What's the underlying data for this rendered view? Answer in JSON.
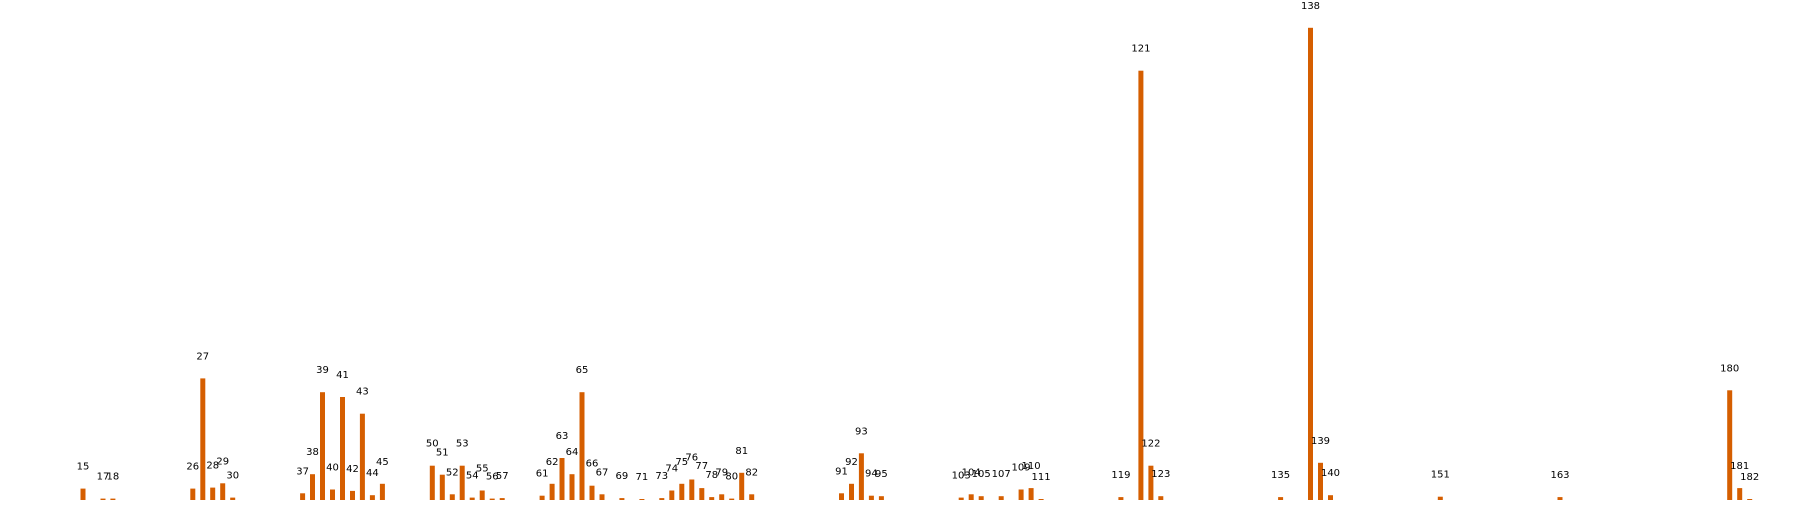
{
  "chart_data": {
    "type": "bar",
    "title": "",
    "xlabel": "",
    "ylabel": "",
    "grid": false,
    "legend": "none",
    "color": "#d55e00",
    "ylim": [
      0,
      1.0
    ],
    "x_range": [
      0,
      182
    ],
    "labels": [
      "15",
      "17",
      "18",
      "26",
      "27",
      "28",
      "29",
      "30",
      "37",
      "38",
      "39",
      "40",
      "41",
      "42",
      "43",
      "44",
      "45",
      "50",
      "51",
      "52",
      "53",
      "54",
      "55",
      "56",
      "57",
      "61",
      "62",
      "63",
      "64",
      "65",
      "66",
      "67",
      "69",
      "71",
      "73",
      "74",
      "75",
      "76",
      "77",
      "78",
      "79",
      "80",
      "81",
      "82",
      "91",
      "92",
      "93",
      "94",
      "95",
      "103",
      "104",
      "105",
      "107",
      "109",
      "110",
      "111",
      "119",
      "121",
      "122",
      "123",
      "135",
      "138",
      "139",
      "140",
      "151",
      "163",
      "180",
      "181",
      "182"
    ],
    "x": [
      15,
      17,
      18,
      26,
      27,
      28,
      29,
      30,
      37,
      38,
      39,
      40,
      41,
      42,
      43,
      44,
      45,
      50,
      51,
      52,
      53,
      54,
      55,
      56,
      57,
      61,
      62,
      63,
      64,
      65,
      66,
      67,
      69,
      71,
      73,
      74,
      75,
      76,
      77,
      78,
      79,
      80,
      81,
      82,
      91,
      92,
      93,
      94,
      95,
      103,
      104,
      105,
      107,
      109,
      110,
      111,
      119,
      121,
      122,
      123,
      135,
      138,
      139,
      140,
      151,
      163,
      180,
      181,
      182
    ],
    "values": [
      0.024,
      0.003,
      0.003,
      0.024,
      0.255,
      0.026,
      0.035,
      0.005,
      0.014,
      0.054,
      0.226,
      0.022,
      0.216,
      0.019,
      0.181,
      0.01,
      0.034,
      0.072,
      0.053,
      0.012,
      0.072,
      0.005,
      0.02,
      0.003,
      0.004,
      0.009,
      0.034,
      0.088,
      0.054,
      0.226,
      0.03,
      0.012,
      0.004,
      0.002,
      0.004,
      0.02,
      0.034,
      0.043,
      0.025,
      0.006,
      0.012,
      0.003,
      0.057,
      0.012,
      0.014,
      0.034,
      0.098,
      0.009,
      0.008,
      0.005,
      0.012,
      0.008,
      0.008,
      0.022,
      0.025,
      0.002,
      0.006,
      0.9,
      0.072,
      0.008,
      0.006,
      0.99,
      0.078,
      0.01,
      0.007,
      0.006,
      0.23,
      0.025,
      0.002
    ]
  }
}
